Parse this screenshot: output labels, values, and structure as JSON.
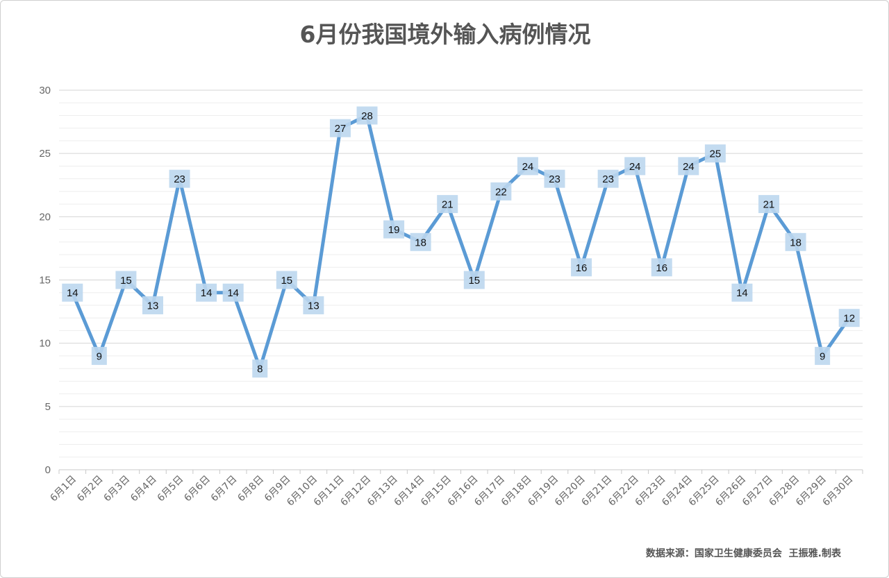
{
  "chart_data": {
    "type": "line",
    "title": "6月份我国境外输入病例情况",
    "categories": [
      "6月1日",
      "6月2日",
      "6月3日",
      "6月4日",
      "6月5日",
      "6月6日",
      "6月7日",
      "6月8日",
      "6月9日",
      "6月10日",
      "6月11日",
      "6月12日",
      "6月13日",
      "6月14日",
      "6月15日",
      "6月16日",
      "6月17日",
      "6月18日",
      "6月19日",
      "6月20日",
      "6月21日",
      "6月22日",
      "6月23日",
      "6月24日",
      "6月25日",
      "6月26日",
      "6月27日",
      "6月28日",
      "6月29日",
      "6月30日"
    ],
    "values": [
      14,
      9,
      15,
      13,
      23,
      14,
      14,
      8,
      15,
      13,
      27,
      28,
      19,
      18,
      21,
      15,
      22,
      24,
      23,
      16,
      23,
      24,
      16,
      24,
      25,
      14,
      21,
      18,
      9,
      12
    ],
    "ylim": [
      0,
      30
    ],
    "yticks": [
      "0",
      "5",
      "10",
      "15",
      "20",
      "25",
      "30"
    ],
    "grid": true,
    "line_color": "#5b9bd5",
    "label_bg_color": "#bdd7ee",
    "source": "数据来源：国家卫生健康委员会  王振雅.制表"
  }
}
